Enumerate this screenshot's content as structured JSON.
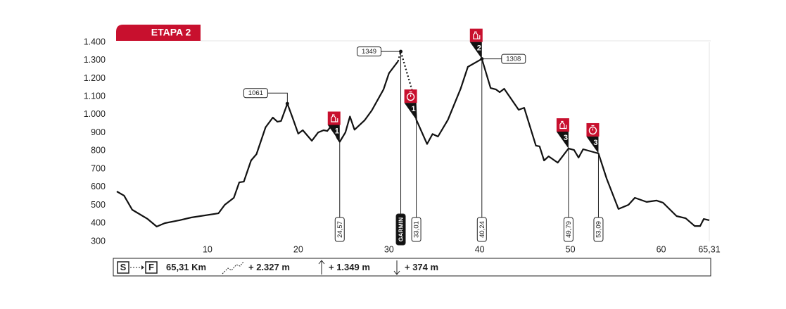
{
  "chart_data": {
    "type": "line",
    "title": "ETAPA 2",
    "color": "#111111",
    "accent": "#c8102e",
    "xlim": [
      0,
      65.31
    ],
    "ylim": [
      300,
      1400
    ],
    "xticks": [
      10,
      20,
      30,
      40,
      50,
      60,
      {
        "value": 65.31,
        "label": "65,31"
      }
    ],
    "yticks": [
      {
        "value": 1400,
        "label": "1.400"
      },
      {
        "value": 1300,
        "label": "1.300"
      },
      {
        "value": 1200,
        "label": "1.200"
      },
      {
        "value": 1100,
        "label": "1.100"
      },
      {
        "value": 1000,
        "label": "1.000"
      },
      900,
      800,
      700,
      600,
      500,
      400,
      300
    ],
    "x": [
      0,
      0.8,
      1.7,
      3.4,
      4.4,
      5.3,
      6.9,
      8.2,
      11.2,
      11.9,
      12.9,
      13.5,
      14.0,
      14.8,
      15.4,
      16.4,
      17.2,
      17.7,
      18.1,
      18.8,
      19.4,
      20.0,
      20.5,
      21.5,
      22.2,
      22.8,
      23.2,
      23.7,
      24.3,
      24.57,
      25.2,
      25.7,
      26.2,
      27.3,
      28.1,
      29.4,
      30.0,
      31.0,
      31.3,
      32.7,
      32.9,
      33.01,
      34.2,
      34.8,
      35.4,
      36.5,
      37.9,
      38.7,
      40.24,
      41.2,
      41.8,
      42.2,
      42.7,
      44.3,
      44.9,
      46.2,
      46.6,
      47.1,
      47.6,
      48.6,
      49.79,
      50.4,
      50.9,
      51.4,
      53.09,
      54.0,
      55.3,
      56.4,
      57.1,
      58.4,
      59.5,
      60.2,
      61.7,
      62.7,
      63.7,
      64.3,
      64.7,
      65.31
    ],
    "values": [
      576,
      553,
      475,
      424,
      382,
      401,
      417,
      432,
      455,
      502,
      541,
      626,
      630,
      747,
      782,
      930,
      984,
      961,
      965,
      1061,
      980,
      895,
      914,
      856,
      902,
      914,
      910,
      941,
      871,
      850,
      902,
      990,
      917,
      968,
      1023,
      1139,
      1229,
      1295,
      null,
      null,
      1090,
      972,
      838,
      893,
      879,
      972,
      1143,
      1264,
      1308,
      1147,
      1139,
      1124,
      1143,
      1027,
      1038,
      829,
      825,
      747,
      770,
      735,
      813,
      805,
      763,
      809,
      786,
      646,
      479,
      502,
      541,
      518,
      526,
      514,
      440,
      428,
      385,
      385,
      424,
      417
    ],
    "dotted": {
      "x": [
        31.0,
        31.3,
        32.7,
        32.9
      ],
      "values": [
        1295,
        1349,
        1108,
        1090
      ]
    },
    "annotations": [
      {
        "x": 18.8,
        "y": 1061
      },
      {
        "x": 31.3,
        "y": 1349
      },
      {
        "x": 40.24,
        "y": 1308
      }
    ],
    "markers": [
      {
        "x": 24.57,
        "label": "24,57",
        "icon": "feed",
        "number": "1"
      },
      {
        "x": 31.3,
        "label": "GARMIN"
      },
      {
        "x": 33.01,
        "label": "33,01",
        "icon": "sprint",
        "number": "1"
      },
      {
        "x": 40.24,
        "label": "40,24",
        "icon": "feed",
        "number": "2"
      },
      {
        "x": 49.79,
        "label": "49,79",
        "icon": "feed",
        "number": "3"
      },
      {
        "x": 53.09,
        "label": "53,09",
        "icon": "sprint",
        "number": "3"
      }
    ],
    "summary": {
      "start": "S",
      "finish": "F",
      "distance": "65,31 Km",
      "climb": "+ 2.327 m",
      "max": "+ 1.349 m",
      "descent": "+ 374 m"
    }
  }
}
